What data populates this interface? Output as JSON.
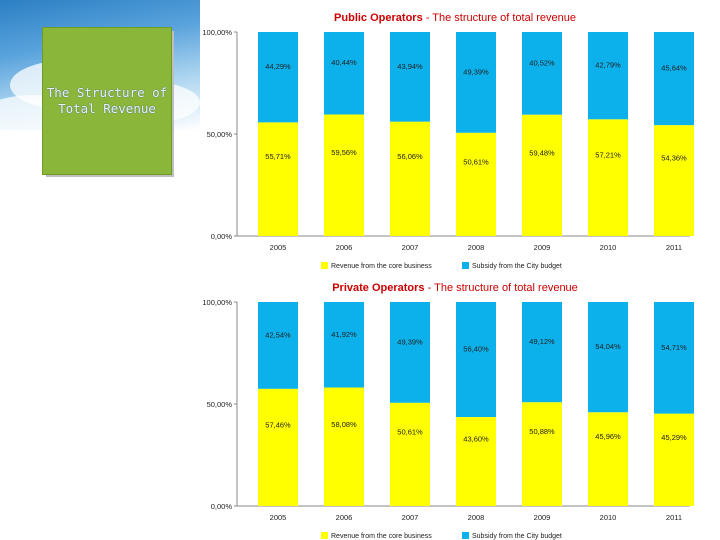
{
  "slide": {
    "title": "The Structure of\nTotal Revenue"
  },
  "chart_data": [
    {
      "type": "bar",
      "stacked": true,
      "title_prefix": "Public Operators",
      "title_suffix": " - The structure of total revenue",
      "categories": [
        "2005",
        "2006",
        "2007",
        "2008",
        "2009",
        "2010",
        "2011"
      ],
      "y_ticks": [
        "100,00%",
        "50,00%",
        "0,00%"
      ],
      "ylim": [
        0,
        100
      ],
      "legend_position": "bottom",
      "series": [
        {
          "name": "Revenue from the core business",
          "color": "#ffff00",
          "values": [
            55.71,
            59.56,
            56.06,
            50.61,
            59.48,
            57.21,
            54.36
          ],
          "labels": [
            "55,71%",
            "59,56%",
            "56,06%",
            "50,61%",
            "59,48%",
            "57,21%",
            "54,36%"
          ]
        },
        {
          "name": "Subsidy from the City budget",
          "color": "#0cb0ea",
          "values": [
            44.29,
            40.44,
            43.94,
            49.39,
            40.52,
            42.79,
            45.64
          ],
          "labels": [
            "44,29%",
            "40,44%",
            "43,94%",
            "49,39%",
            "40,52%",
            "42,79%",
            "45,64%"
          ]
        }
      ]
    },
    {
      "type": "bar",
      "stacked": true,
      "title_prefix": "Private Operators",
      "title_suffix": " - The structure of total revenue",
      "categories": [
        "2005",
        "2006",
        "2007",
        "2008",
        "2009",
        "2010",
        "2011"
      ],
      "y_ticks": [
        "100,00%",
        "50,00%",
        "0,00%"
      ],
      "ylim": [
        0,
        100
      ],
      "legend_position": "bottom",
      "series": [
        {
          "name": "Revenue from the core business",
          "color": "#ffff00",
          "values": [
            57.46,
            58.08,
            50.61,
            43.6,
            50.88,
            45.96,
            45.29
          ],
          "labels": [
            "57,46%",
            "58,08%",
            "50,61%",
            "43,60%",
            "50,88%",
            "45,96%",
            "45,29%"
          ]
        },
        {
          "name": "Subsidy from the City budget",
          "color": "#0cb0ea",
          "values": [
            42.54,
            41.92,
            49.39,
            56.4,
            49.12,
            54.04,
            54.71
          ],
          "labels": [
            "42,54%",
            "41,92%",
            "49,39%",
            "56,40%",
            "49,12%",
            "54,04%",
            "54,71%"
          ]
        }
      ]
    }
  ]
}
